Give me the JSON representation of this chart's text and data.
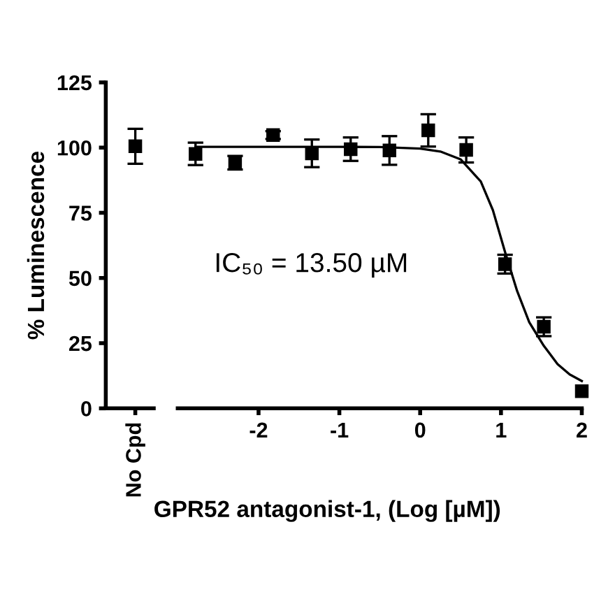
{
  "chart_data": [
    {
      "type": "scatter",
      "ylabel": "% Luminescence",
      "categories": [
        "No Cpd"
      ],
      "ylim": [
        0,
        125
      ],
      "yticks": [
        0,
        25,
        50,
        75,
        100,
        125
      ],
      "marker": "square",
      "grid": false,
      "series": [
        {
          "color": "#000000",
          "values": [
            100.5
          ],
          "errors": [
            6.7
          ]
        }
      ]
    },
    {
      "type": "scatter",
      "xlabel": "GPR52 antagonist-1, (Log [µM])",
      "xlim": [
        -3,
        2
      ],
      "xticks": [
        -2,
        -1,
        0,
        1,
        2
      ],
      "ylim": [
        0,
        125
      ],
      "yticks": [
        0,
        25,
        50,
        75,
        100,
        125
      ],
      "tick_labels": "x",
      "grid": false,
      "annotations": [
        "IC₅₀ = 13.50 µM"
      ],
      "series": [
        {
          "type": "scatter",
          "marker": "square",
          "color": "#000000",
          "x": [
            -2.78,
            -2.29,
            -1.82,
            -1.34,
            -0.86,
            -0.38,
            0.1,
            0.57,
            1.05,
            1.53,
            2.0
          ],
          "values": [
            97.6,
            94.2,
            104.8,
            97.8,
            99.4,
            98.9,
            106.6,
            99.1,
            55.3,
            31.3,
            6.6
          ],
          "errors": [
            4.3,
            2.6,
            1.5,
            5.3,
            4.5,
            5.5,
            6.2,
            4.8,
            3.6,
            3.6,
            null
          ]
        },
        {
          "type": "line",
          "marker": "none",
          "line_style": "solid",
          "color": "#000000",
          "x": [
            -2.78,
            -1,
            -0.5,
            0,
            0.25,
            0.5,
            0.75,
            0.9,
            1.05,
            1.2,
            1.35,
            1.53,
            1.7,
            1.85,
            2.0
          ],
          "values": [
            100.3,
            100.3,
            100.2,
            99.6,
            98.5,
            95.5,
            87,
            76,
            60,
            45,
            33,
            24,
            17,
            13,
            10.5
          ]
        }
      ]
    }
  ]
}
